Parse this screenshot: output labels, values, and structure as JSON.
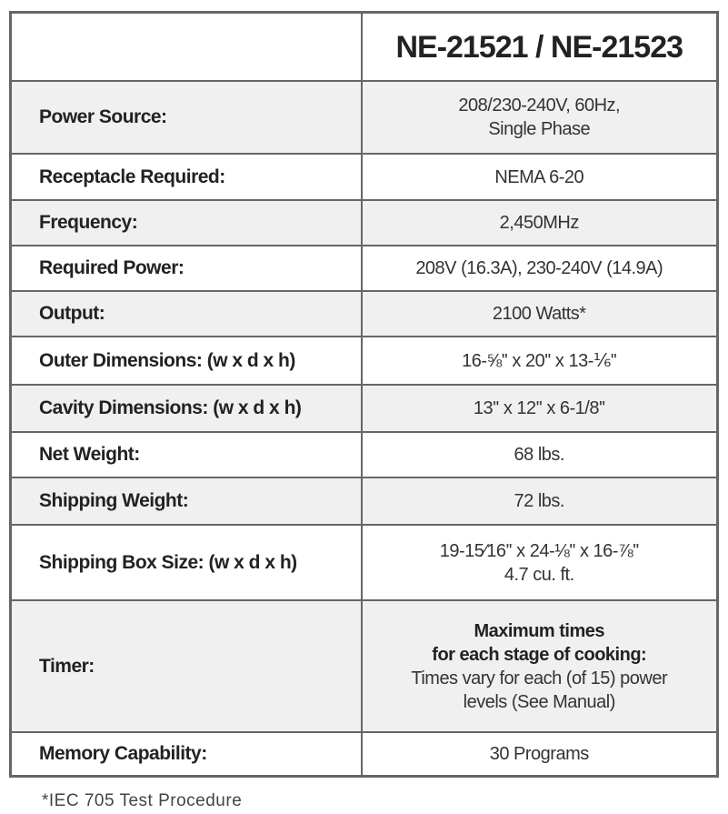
{
  "header": {
    "model": "NE-21521 / NE-21523"
  },
  "rows": [
    {
      "label": "Power Source:",
      "value": [
        "208/230-240V, 60Hz,",
        "Single Phase"
      ]
    },
    {
      "label": "Receptacle Required:",
      "value": [
        "NEMA 6-20"
      ]
    },
    {
      "label": "Frequency:",
      "value": [
        "2,450MHz"
      ]
    },
    {
      "label": "Required Power:",
      "value": [
        "208V (16.3A), 230-240V (14.9A)"
      ]
    },
    {
      "label": "Output:",
      "value": [
        "2100 Watts*"
      ]
    },
    {
      "label": "Outer Dimensions: (w x d x h)",
      "value": [
        "16-⅝'' x 20'' x 13-⅙''"
      ]
    },
    {
      "label": "Cavity Dimensions: (w x d x h)",
      "value": [
        "13'' x 12'' x 6-1/8''"
      ]
    },
    {
      "label": "Net Weight:",
      "value": [
        "68 lbs."
      ]
    },
    {
      "label": "Shipping Weight:",
      "value": [
        "72 lbs."
      ]
    },
    {
      "label": "Shipping Box Size: (w x d x h)",
      "value": [
        "19-15⁄16'' x 24-⅛'' x 16-⅞''",
        "4.7 cu. ft."
      ]
    },
    {
      "label": "Timer:",
      "value_bold": [
        "Maximum times",
        "for each stage of cooking:"
      ],
      "value": [
        "Times vary for each (of 15) power",
        "levels (See Manual)"
      ]
    },
    {
      "label": "Memory Capability:",
      "value": [
        "30 Programs"
      ]
    }
  ],
  "footnote": "*IEC 705 Test Procedure"
}
